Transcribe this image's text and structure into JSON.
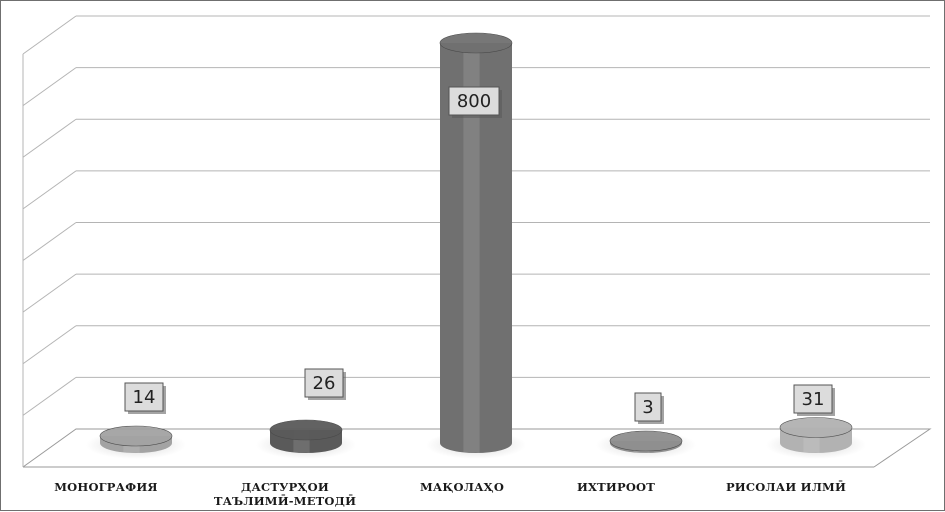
{
  "chart_data": {
    "type": "bar",
    "style": "3d-cylinder",
    "categories": [
      [
        "МОНОГРАФИЯ"
      ],
      [
        "ДАСТУРҲОИ",
        "ТАЪЛИМӢ-МЕТОДӢ"
      ],
      [
        "МАҚОЛАҲО"
      ],
      [
        "ИХТИРООТ"
      ],
      [
        "РИСОЛАИ ИЛМӢ"
      ]
    ],
    "values": [
      14,
      26,
      800,
      3,
      31
    ],
    "value_labels": [
      "14",
      "26",
      "800",
      "3",
      "31"
    ],
    "colors": [
      "#a3a3a3",
      "#5a5a5a",
      "#707070",
      "#8f8f8f",
      "#b2b2b2"
    ],
    "ylim": [
      0,
      900
    ],
    "grid": true,
    "title": "",
    "xlabel": "",
    "ylabel": ""
  }
}
